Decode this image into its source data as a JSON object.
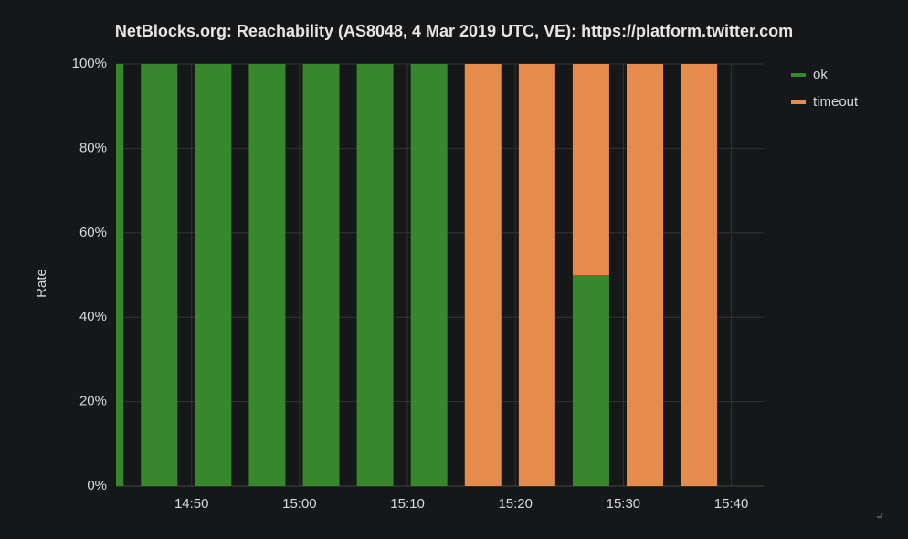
{
  "chart_data": {
    "type": "bar",
    "stacked": true,
    "title": "NetBlocks.org: Reachability (AS8048, 4 Mar 2019 UTC, VE): https://platform.twitter.com",
    "y_label": "Rate",
    "x": [
      "14:42",
      "14:47",
      "14:52",
      "14:57",
      "15:02",
      "15:07",
      "15:12",
      "15:17",
      "15:22",
      "15:27",
      "15:32",
      "15:37"
    ],
    "xlim": [
      "14:43",
      "15:43"
    ],
    "xticks": [
      "14:50",
      "15:00",
      "15:10",
      "15:20",
      "15:30",
      "15:40"
    ],
    "ylim": [
      0,
      100
    ],
    "yticks": [
      {
        "value": 0,
        "label": "0%"
      },
      {
        "value": 20,
        "label": "20%"
      },
      {
        "value": 40,
        "label": "40%"
      },
      {
        "value": 60,
        "label": "60%"
      },
      {
        "value": 80,
        "label": "80%"
      },
      {
        "value": 100,
        "label": "100%"
      }
    ],
    "grid": true,
    "legend": "right",
    "series": [
      {
        "name": "ok",
        "color": "#37872d",
        "values": [
          100,
          100,
          100,
          100,
          100,
          100,
          100,
          0,
          0,
          50,
          0,
          0
        ]
      },
      {
        "name": "timeout",
        "color": "#e58c4c",
        "values": [
          0,
          0,
          0,
          0,
          0,
          0,
          0,
          100,
          100,
          50,
          100,
          100
        ]
      }
    ]
  }
}
